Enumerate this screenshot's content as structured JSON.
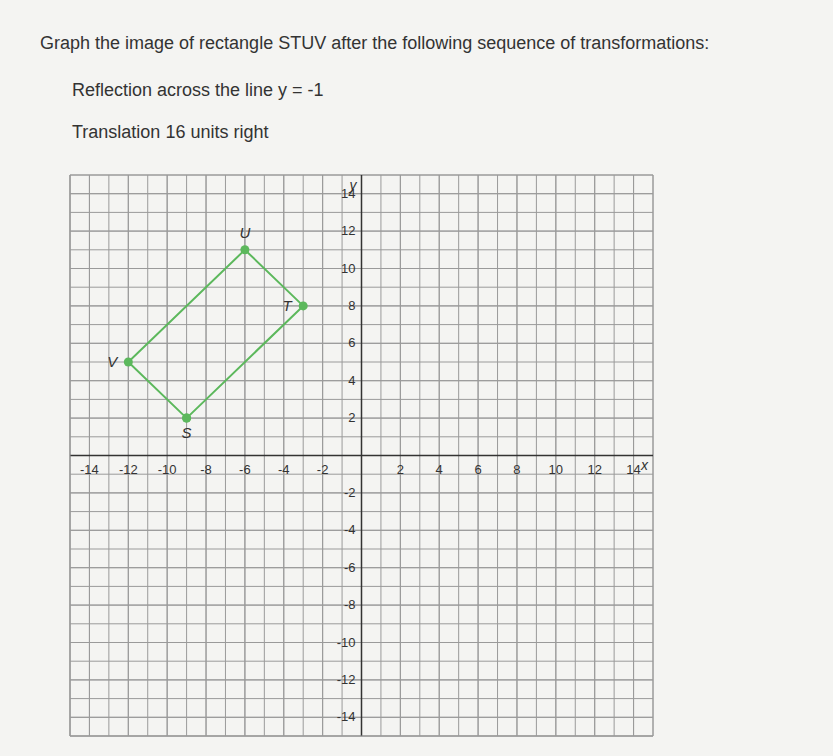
{
  "chart_data": {
    "type": "scatter",
    "title": "Graph the image of rectangle STUV after the following sequence of transformations:",
    "subtitle": [
      "Reflection across the line y = -1",
      "Translation 16 units right"
    ],
    "x_label": "x",
    "y_label": "y",
    "points": [
      {
        "label": "S",
        "x": -9,
        "y": 2
      },
      {
        "label": "T",
        "x": -3,
        "y": 8
      },
      {
        "label": "U",
        "x": -6,
        "y": 11
      },
      {
        "label": "V",
        "x": -12,
        "y": 5
      }
    ],
    "color": "#5cb85c",
    "marker": "circle",
    "line_style": "solid",
    "xlim": [
      -15,
      15
    ],
    "ylim": [
      -15,
      15
    ],
    "xticks": [
      -14,
      -12,
      -10,
      -8,
      -6,
      -4,
      -2,
      2,
      4,
      6,
      8,
      10,
      12,
      14
    ],
    "yticks": [
      -14,
      -12,
      -10,
      -8,
      -6,
      -4,
      -2,
      2,
      4,
      6,
      8,
      10,
      12,
      14
    ],
    "grid": true
  }
}
